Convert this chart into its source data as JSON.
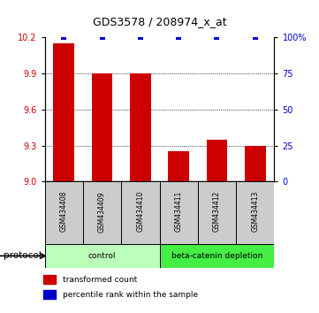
{
  "title": "GDS3578 / 208974_x_at",
  "samples": [
    "GSM434408",
    "GSM434409",
    "GSM434410",
    "GSM434411",
    "GSM434412",
    "GSM434413"
  ],
  "bar_values": [
    10.15,
    9.9,
    9.9,
    9.25,
    9.35,
    9.3
  ],
  "percentile_values": [
    100,
    100,
    100,
    100,
    100,
    100
  ],
  "ylim_left": [
    9.0,
    10.2
  ],
  "ylim_right": [
    0,
    100
  ],
  "yticks_left": [
    9.0,
    9.3,
    9.6,
    9.9,
    10.2
  ],
  "yticks_right": [
    0,
    25,
    50,
    75,
    100
  ],
  "ytick_labels_right": [
    "0",
    "25",
    "50",
    "75",
    "100%"
  ],
  "grid_values": [
    9.3,
    9.6,
    9.9
  ],
  "bar_color": "#cc0000",
  "dot_color": "#0000cc",
  "bar_bottom": 9.0,
  "groups": [
    {
      "label": "control",
      "indices": [
        0,
        1,
        2
      ],
      "color": "#bbffbb"
    },
    {
      "label": "beta-catenin depletion",
      "indices": [
        3,
        4,
        5
      ],
      "color": "#44ee44"
    }
  ],
  "protocol_label": "protocol",
  "legend_bar_label": "transformed count",
  "legend_dot_label": "percentile rank within the sample",
  "tick_label_color_left": "#cc0000",
  "tick_label_color_right": "#0000cc"
}
